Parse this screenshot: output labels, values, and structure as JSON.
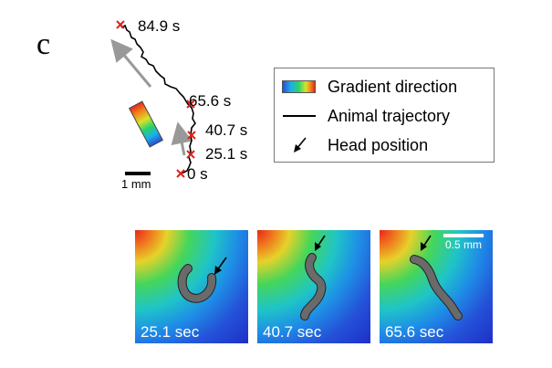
{
  "panel": {
    "letter": "c"
  },
  "trajectory": {
    "time_labels": [
      "84.9 s",
      "65.6 s",
      "40.7 s",
      "25.1 s",
      "0 s"
    ],
    "scalebar_label": "1 mm"
  },
  "legend": {
    "items": [
      {
        "icon": "gradient-swatch",
        "label": "Gradient direction"
      },
      {
        "icon": "trajectory-line",
        "label": "Animal trajectory"
      },
      {
        "icon": "head-arrow",
        "label": "Head position"
      }
    ]
  },
  "frames": [
    {
      "label": "25.1 sec"
    },
    {
      "label": "40.7 sec"
    },
    {
      "label": "65.6 sec",
      "scale_label": "0.5 mm"
    }
  ],
  "colors": {
    "marker": "#e0201a",
    "trajectory": "#000000",
    "gradient_arrow": "#999999",
    "worm": "#666666"
  }
}
